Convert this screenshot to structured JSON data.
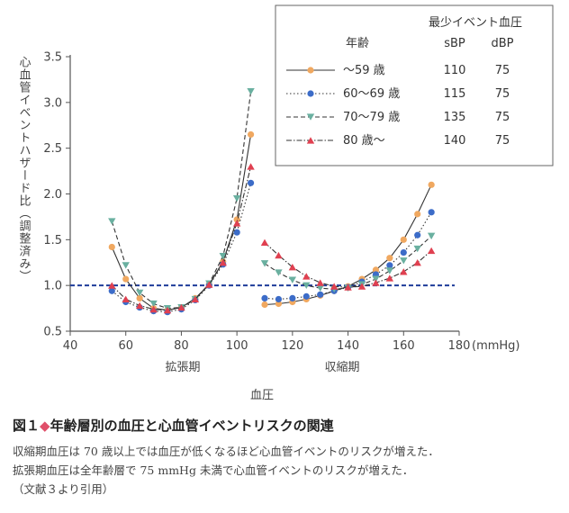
{
  "chart_data": {
    "type": "line",
    "ylabel": "心血管イベントハザード比（調整済み）",
    "xlabel": "血圧",
    "x_unit": "(mmHg)",
    "xlim": [
      40,
      180
    ],
    "ylim": [
      0.5,
      3.5
    ],
    "x_ticks": [
      "40",
      "60",
      "80",
      "100",
      "120",
      "140",
      "160",
      "180"
    ],
    "y_ticks": [
      "0.5",
      "1.0",
      "1.5",
      "2.0",
      "2.5",
      "3.0",
      "3.5"
    ],
    "reference_line": 1.0,
    "region_labels": [
      "拡張期",
      "収縮期"
    ],
    "legend": {
      "header": "最少イベント血圧",
      "col_age": "年齢",
      "col_sbp": "sBP",
      "col_dbp": "dBP"
    },
    "series": [
      {
        "name": "〜59 歳",
        "sbp": "110",
        "dbp": "75",
        "color": "#f0a860",
        "marker": "circle",
        "dash": "",
        "diastolic": [
          [
            55,
            1.42
          ],
          [
            60,
            1.07
          ],
          [
            65,
            0.86
          ],
          [
            70,
            0.75
          ],
          [
            75,
            0.73
          ],
          [
            80,
            0.76
          ],
          [
            85,
            0.86
          ],
          [
            90,
            1.01
          ],
          [
            95,
            1.26
          ],
          [
            100,
            1.72
          ],
          [
            105,
            2.65
          ]
        ],
        "systolic": [
          [
            110,
            0.79
          ],
          [
            115,
            0.8
          ],
          [
            120,
            0.82
          ],
          [
            125,
            0.85
          ],
          [
            130,
            0.89
          ],
          [
            135,
            0.94
          ],
          [
            140,
            0.99
          ],
          [
            145,
            1.07
          ],
          [
            150,
            1.17
          ],
          [
            155,
            1.3
          ],
          [
            160,
            1.5
          ],
          [
            165,
            1.78
          ],
          [
            170,
            2.1
          ]
        ]
      },
      {
        "name": "60〜69 歳",
        "sbp": "115",
        "dbp": "75",
        "color": "#3c6cc8",
        "marker": "circle",
        "dash": "1.5,2.5",
        "diastolic": [
          [
            55,
            0.94
          ],
          [
            60,
            0.82
          ],
          [
            65,
            0.76
          ],
          [
            70,
            0.72
          ],
          [
            75,
            0.71
          ],
          [
            80,
            0.74
          ],
          [
            85,
            0.84
          ],
          [
            90,
            1.0
          ],
          [
            95,
            1.23
          ],
          [
            100,
            1.58
          ],
          [
            105,
            2.12
          ]
        ],
        "systolic": [
          [
            110,
            0.86
          ],
          [
            115,
            0.85
          ],
          [
            120,
            0.86
          ],
          [
            125,
            0.88
          ],
          [
            130,
            0.9
          ],
          [
            135,
            0.94
          ],
          [
            140,
            0.98
          ],
          [
            145,
            1.04
          ],
          [
            150,
            1.12
          ],
          [
            155,
            1.22
          ],
          [
            160,
            1.36
          ],
          [
            165,
            1.55
          ],
          [
            170,
            1.8
          ]
        ]
      },
      {
        "name": "70〜79 歳",
        "sbp": "135",
        "dbp": "75",
        "color": "#6ab0a0",
        "marker": "triangle-down",
        "dash": "5,3",
        "diastolic": [
          [
            55,
            1.7
          ],
          [
            60,
            1.22
          ],
          [
            65,
            0.92
          ],
          [
            70,
            0.8
          ],
          [
            75,
            0.75
          ],
          [
            80,
            0.76
          ],
          [
            85,
            0.85
          ],
          [
            90,
            1.02
          ],
          [
            95,
            1.32
          ],
          [
            100,
            1.95
          ],
          [
            105,
            3.12
          ]
        ],
        "systolic": [
          [
            110,
            1.24
          ],
          [
            115,
            1.14
          ],
          [
            120,
            1.06
          ],
          [
            125,
            1.0
          ],
          [
            130,
            0.97
          ],
          [
            135,
            0.96
          ],
          [
            140,
            0.97
          ],
          [
            145,
            1.01
          ],
          [
            150,
            1.07
          ],
          [
            155,
            1.16
          ],
          [
            160,
            1.27
          ],
          [
            165,
            1.4
          ],
          [
            170,
            1.54
          ]
        ]
      },
      {
        "name": "80 歳〜",
        "sbp": "140",
        "dbp": "75",
        "color": "#e04050",
        "marker": "triangle-up",
        "dash": "6,2,1.5,2",
        "diastolic": [
          [
            55,
            1.0
          ],
          [
            60,
            0.85
          ],
          [
            65,
            0.78
          ],
          [
            70,
            0.74
          ],
          [
            75,
            0.73
          ],
          [
            80,
            0.76
          ],
          [
            85,
            0.85
          ],
          [
            90,
            1.01
          ],
          [
            95,
            1.25
          ],
          [
            100,
            1.68
          ],
          [
            105,
            2.3
          ]
        ],
        "systolic": [
          [
            110,
            1.47
          ],
          [
            115,
            1.33
          ],
          [
            120,
            1.2
          ],
          [
            125,
            1.1
          ],
          [
            130,
            1.03
          ],
          [
            135,
            0.99
          ],
          [
            140,
            0.98
          ],
          [
            145,
            0.99
          ],
          [
            150,
            1.03
          ],
          [
            155,
            1.08
          ],
          [
            160,
            1.15
          ],
          [
            165,
            1.25
          ],
          [
            170,
            1.38
          ]
        ]
      }
    ]
  },
  "caption": {
    "figure_no": "図１",
    "diamond": "◆",
    "title": "年齢層別の血圧と心血管イベントリスクの関連",
    "line1": "収縮期血圧は 70 歳以上では血圧が低くなるほど心血管イベントのリスクが増えた．",
    "line2": "拡張期血圧は全年齢層で 75 mmHg 未満で心血管イベントのリスクが増えた．",
    "line3": "（文献３より引用）"
  }
}
